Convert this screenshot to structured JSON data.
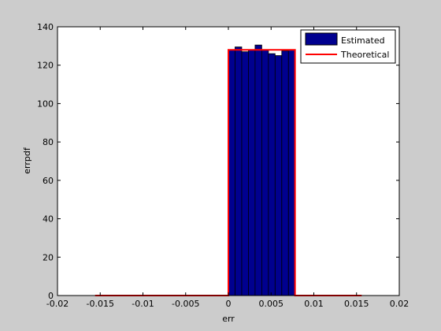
{
  "chart_data": {
    "type": "bar",
    "xlabel": "err",
    "ylabel": "errpdf",
    "xlim": [
      -0.02,
      0.02
    ],
    "ylim": [
      0,
      140
    ],
    "xticks": [
      -0.02,
      -0.015,
      -0.01,
      -0.005,
      0,
      0.005,
      0.01,
      0.015,
      0.02
    ],
    "xtick_labels": [
      "-0.02",
      "-0.015",
      "-0.01",
      "-0.005",
      "0",
      "0.005",
      "0.01",
      "0.015",
      "0.02"
    ],
    "yticks": [
      0,
      20,
      40,
      60,
      80,
      100,
      120,
      140
    ],
    "ytick_labels": [
      "0",
      "20",
      "40",
      "60",
      "80",
      "100",
      "120",
      "140"
    ],
    "grid": false,
    "legend_position": "top-right",
    "series": [
      {
        "name": "Estimated",
        "kind": "histogram",
        "color": "#00008f",
        "edge_color": "#000000",
        "bin_width": 0.00078125,
        "x": [
          0.000391,
          0.001172,
          0.001953,
          0.002734,
          0.003516,
          0.004297,
          0.005078,
          0.005859,
          0.006641,
          0.007422
        ],
        "values": [
          128,
          129.5,
          127,
          128,
          130.5,
          128,
          126,
          125,
          127.5,
          128
        ]
      },
      {
        "name": "Theoretical",
        "kind": "line",
        "color": "#ff0000",
        "x": [
          -0.0156,
          0,
          0,
          0.0078,
          0.0078,
          0.0156
        ],
        "values": [
          0,
          0,
          128,
          128,
          0,
          0
        ]
      }
    ]
  }
}
